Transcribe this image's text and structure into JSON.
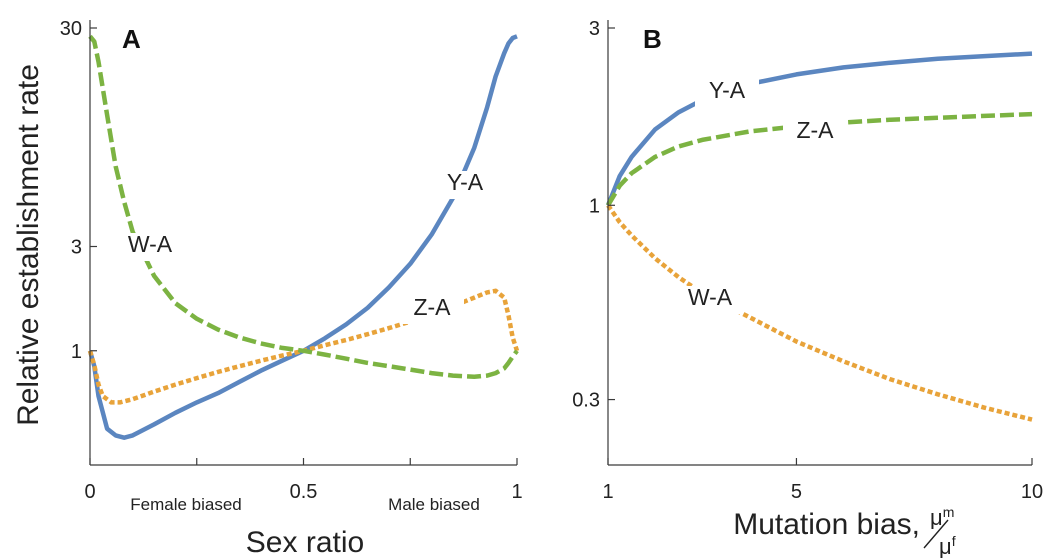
{
  "chart_data": [
    {
      "type": "line",
      "panel": "A",
      "xlabel": "Sex ratio",
      "ylabel": "Relative establishment rate",
      "xlim": [
        0,
        1
      ],
      "ylim": [
        0.3,
        30
      ],
      "yscale": "log",
      "xticks": [
        0,
        0.25,
        0.5,
        0.75,
        1
      ],
      "xtick_labels": [
        "0",
        "",
        "0.5",
        "",
        "1"
      ],
      "yticks": [
        1,
        3,
        30
      ],
      "ytick_labels": [
        "1",
        "3",
        "30"
      ],
      "annotations": [
        "Female biased",
        "Male biased"
      ],
      "series": [
        {
          "name": "Y-A",
          "color": "#5b86c0",
          "style": "solid",
          "x": [
            0.0,
            0.01,
            0.02,
            0.04,
            0.06,
            0.08,
            0.1,
            0.15,
            0.2,
            0.25,
            0.3,
            0.35,
            0.4,
            0.45,
            0.5,
            0.55,
            0.6,
            0.65,
            0.7,
            0.75,
            0.8,
            0.85,
            0.9,
            0.93,
            0.95,
            0.97,
            0.98,
            0.99,
            1.0
          ],
          "y": [
            1.0,
            0.85,
            0.62,
            0.44,
            0.41,
            0.4,
            0.41,
            0.46,
            0.52,
            0.58,
            0.64,
            0.72,
            0.81,
            0.9,
            1.0,
            1.14,
            1.32,
            1.57,
            1.95,
            2.5,
            3.4,
            5.0,
            8.5,
            13.0,
            18.0,
            23.0,
            25.5,
            27.0,
            27.5
          ]
        },
        {
          "name": "Z-A",
          "color": "#e8a33a",
          "style": "dotted",
          "x": [
            0.0,
            0.01,
            0.02,
            0.03,
            0.05,
            0.07,
            0.1,
            0.15,
            0.2,
            0.25,
            0.3,
            0.35,
            0.4,
            0.45,
            0.5,
            0.55,
            0.6,
            0.65,
            0.7,
            0.75,
            0.8,
            0.85,
            0.9,
            0.93,
            0.95,
            0.97,
            0.98,
            0.99,
            1.0
          ],
          "y": [
            1.0,
            0.86,
            0.7,
            0.62,
            0.58,
            0.58,
            0.6,
            0.65,
            0.7,
            0.75,
            0.8,
            0.85,
            0.9,
            0.95,
            1.0,
            1.06,
            1.12,
            1.19,
            1.27,
            1.36,
            1.47,
            1.6,
            1.75,
            1.85,
            1.88,
            1.75,
            1.45,
            1.15,
            1.0
          ]
        },
        {
          "name": "W-A",
          "color": "#7cb342",
          "style": "dashed",
          "x": [
            0.0,
            0.01,
            0.02,
            0.04,
            0.06,
            0.08,
            0.1,
            0.15,
            0.2,
            0.25,
            0.3,
            0.35,
            0.4,
            0.45,
            0.5,
            0.55,
            0.6,
            0.65,
            0.7,
            0.75,
            0.8,
            0.85,
            0.9,
            0.93,
            0.95,
            0.97,
            0.98,
            0.99,
            1.0
          ],
          "y": [
            27.5,
            26.0,
            21.0,
            12.0,
            7.0,
            4.8,
            3.5,
            2.2,
            1.65,
            1.4,
            1.25,
            1.15,
            1.08,
            1.03,
            1.0,
            0.96,
            0.92,
            0.88,
            0.85,
            0.82,
            0.79,
            0.77,
            0.76,
            0.77,
            0.79,
            0.83,
            0.88,
            0.94,
            1.0
          ]
        }
      ]
    },
    {
      "type": "line",
      "panel": "B",
      "xlabel": "Mutation bias,",
      "xlabel_fraction": {
        "numerator": "μ",
        "numerator_sup": "m",
        "denominator": "μ",
        "denominator_sup": "f"
      },
      "ylabel": "",
      "xlim": [
        1,
        10
      ],
      "ylim": [
        0.2,
        3
      ],
      "yscale": "log",
      "xticks": [
        1,
        5,
        10
      ],
      "xtick_labels": [
        "1",
        "5",
        "10"
      ],
      "yticks": [
        0.3,
        1,
        3
      ],
      "ytick_labels": [
        "0.3",
        "1",
        "3"
      ],
      "series": [
        {
          "name": "Y-A",
          "color": "#5b86c0",
          "style": "solid",
          "x": [
            1.0,
            1.25,
            1.5,
            2.0,
            2.5,
            3.0,
            4.0,
            5.0,
            6.0,
            7.0,
            8.0,
            9.0,
            10.0
          ],
          "y": [
            1.0,
            1.2,
            1.35,
            1.6,
            1.78,
            1.92,
            2.12,
            2.25,
            2.35,
            2.42,
            2.48,
            2.52,
            2.56
          ]
        },
        {
          "name": "Z-A",
          "color": "#7cb342",
          "style": "dashed",
          "x": [
            1.0,
            1.25,
            1.5,
            2.0,
            2.5,
            3.0,
            4.0,
            5.0,
            6.0,
            7.0,
            8.0,
            9.0,
            10.0
          ],
          "y": [
            1.0,
            1.13,
            1.22,
            1.35,
            1.44,
            1.5,
            1.58,
            1.63,
            1.67,
            1.7,
            1.72,
            1.74,
            1.76
          ]
        },
        {
          "name": "W-A",
          "color": "#e8a33a",
          "style": "dotted",
          "x": [
            1.0,
            1.25,
            1.5,
            2.0,
            2.5,
            3.0,
            4.0,
            5.0,
            6.0,
            7.0,
            8.0,
            9.0,
            10.0
          ],
          "y": [
            1.0,
            0.9,
            0.83,
            0.72,
            0.64,
            0.58,
            0.5,
            0.43,
            0.38,
            0.34,
            0.31,
            0.285,
            0.265
          ]
        }
      ]
    }
  ]
}
